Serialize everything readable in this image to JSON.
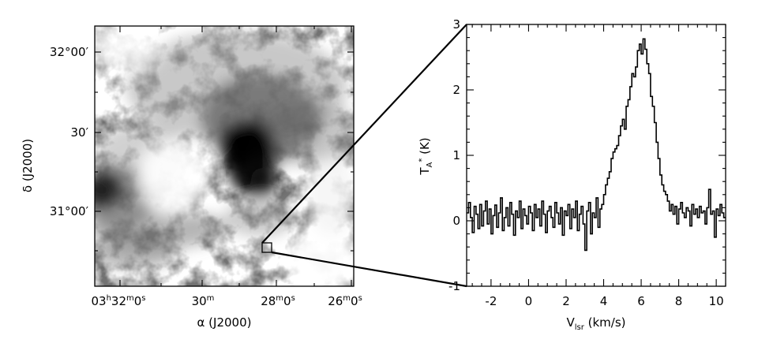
{
  "chart_data": [
    {
      "type": "heatmap",
      "colormap": "grayscale (white = low, black = high emission)",
      "ylabel": "δ (J2000)",
      "xlabel": "α (J2000)",
      "y_ticks": [
        "32°00′",
        "30′",
        "31°00′"
      ],
      "x_ticks": [
        "03h32m0s",
        "30m",
        "28m0s",
        "26m0s"
      ],
      "box_label": "",
      "grid": false
    },
    {
      "type": "line",
      "style": "step (histogram)",
      "xlabel": "Vlsr (km/s)",
      "ylabel": "TA* (K)",
      "xlim": [
        -3.3,
        10.5
      ],
      "ylim": [
        -1,
        3
      ],
      "x_ticks": [
        -2,
        0,
        2,
        4,
        6,
        8,
        10
      ],
      "y_ticks": [
        -1,
        0,
        1,
        2,
        3
      ],
      "grid": false,
      "legend": "none",
      "series": [
        {
          "x": [
            -3.3,
            -3.2,
            -3.1,
            -3.0,
            -2.9,
            -2.8,
            -2.7,
            -2.6,
            -2.5,
            -2.4,
            -2.3,
            -2.2,
            -2.1,
            -2.0,
            -1.9,
            -1.8,
            -1.7,
            -1.6,
            -1.5,
            -1.4,
            -1.3,
            -1.2,
            -1.1,
            -1.0,
            -0.9,
            -0.8,
            -0.7,
            -0.6,
            -0.5,
            -0.4,
            -0.3,
            -0.2,
            -0.1,
            0.0,
            0.1,
            0.2,
            0.3,
            0.4,
            0.5,
            0.6,
            0.7,
            0.8,
            0.9,
            1.0,
            1.1,
            1.2,
            1.3,
            1.4,
            1.5,
            1.6,
            1.7,
            1.8,
            1.9,
            2.0,
            2.1,
            2.2,
            2.3,
            2.4,
            2.5,
            2.6,
            2.7,
            2.8,
            2.9,
            3.0,
            3.1,
            3.2,
            3.3,
            3.4,
            3.5,
            3.6,
            3.7,
            3.8,
            3.9,
            4.0,
            4.1,
            4.2,
            4.3,
            4.4,
            4.5,
            4.6,
            4.7,
            4.8,
            4.9,
            5.0,
            5.1,
            5.2,
            5.3,
            5.4,
            5.5,
            5.6,
            5.7,
            5.8,
            5.9,
            6.0,
            6.1,
            6.2,
            6.3,
            6.4,
            6.5,
            6.6,
            6.7,
            6.8,
            6.9,
            7.0,
            7.1,
            7.2,
            7.3,
            7.4,
            7.5,
            7.6,
            7.7,
            7.8,
            7.9,
            8.0,
            8.1,
            8.2,
            8.3,
            8.4,
            8.5,
            8.6,
            8.7,
            8.8,
            8.9,
            9.0,
            9.1,
            9.2,
            9.3,
            9.4,
            9.5,
            9.6,
            9.7,
            9.8,
            9.9,
            10.0,
            10.1,
            10.2,
            10.3,
            10.4
          ],
          "values": [
            0.12,
            0.28,
            0.05,
            -0.18,
            0.22,
            0.1,
            -0.12,
            0.25,
            -0.08,
            0.15,
            0.3,
            -0.05,
            0.18,
            -0.2,
            0.08,
            0.24,
            -0.1,
            0.12,
            0.35,
            -0.15,
            0.05,
            0.2,
            -0.08,
            0.28,
            0.1,
            -0.22,
            0.15,
            0.05,
            0.3,
            -0.12,
            0.18,
            0.08,
            -0.05,
            0.22,
            0.12,
            -0.15,
            0.25,
            0.05,
            0.18,
            -0.08,
            0.3,
            0.1,
            -0.18,
            0.15,
            0.22,
            0.05,
            -0.1,
            0.28,
            0.12,
            -0.05,
            0.2,
            -0.22,
            0.15,
            0.08,
            0.25,
            -0.12,
            0.18,
            0.05,
            0.3,
            -0.15,
            0.1,
            0.22,
            -0.05,
            -0.45,
            0.15,
            0.28,
            -0.2,
            0.12,
            0.05,
            0.35,
            -0.1,
            0.18,
            0.25,
            0.4,
            0.55,
            0.65,
            0.75,
            0.95,
            1.05,
            1.1,
            1.15,
            1.3,
            1.45,
            1.55,
            1.4,
            1.75,
            1.85,
            2.05,
            2.25,
            2.2,
            2.35,
            2.6,
            2.7,
            2.55,
            2.78,
            2.62,
            2.4,
            2.25,
            1.9,
            1.75,
            1.5,
            1.2,
            0.95,
            0.7,
            0.55,
            0.45,
            0.4,
            0.3,
            0.15,
            0.25,
            0.1,
            0.22,
            -0.05,
            0.18,
            0.28,
            0.12,
            0.05,
            0.2,
            0.15,
            -0.08,
            0.25,
            0.1,
            0.18,
            0.05,
            0.22,
            0.12,
            0.15,
            -0.05,
            0.2,
            0.48,
            0.1,
            0.15,
            -0.25,
            0.18,
            0.08,
            0.25,
            0.12,
            0.05
          ]
        }
      ]
    }
  ]
}
